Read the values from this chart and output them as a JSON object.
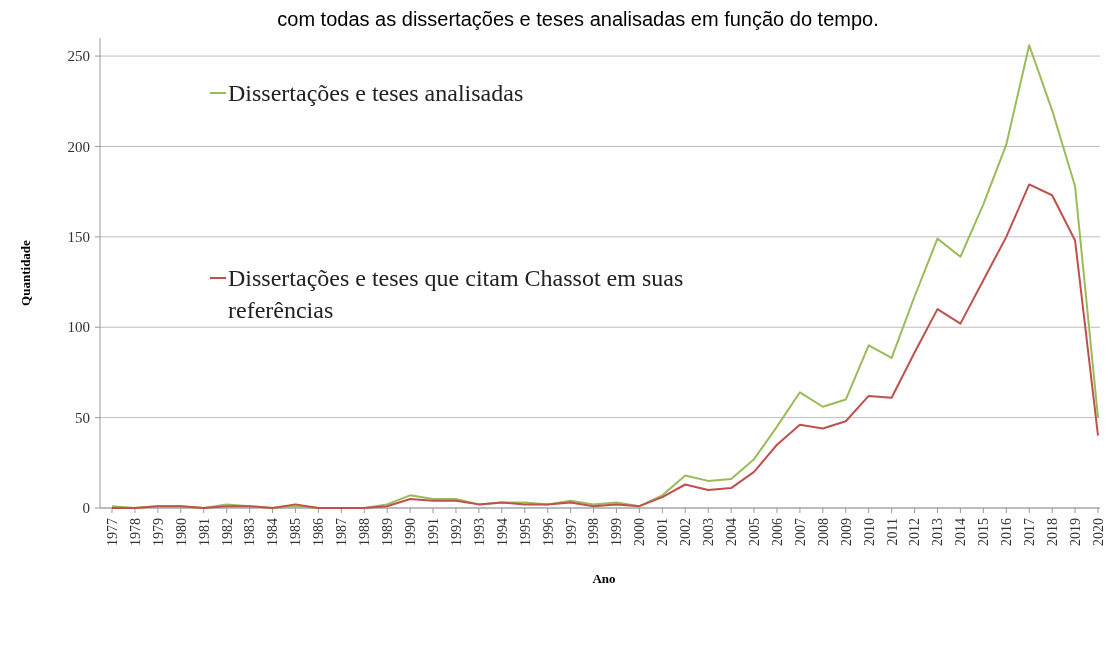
{
  "chart_data": {
    "type": "line",
    "title": "com todas as dissertações e teses analisadas em função do tempo.",
    "xlabel": "Ano",
    "ylabel": "Quantidade",
    "categories": [
      "1977",
      "1978",
      "1979",
      "1980",
      "1981",
      "1982",
      "1983",
      "1984",
      "1985",
      "1986",
      "1987",
      "1988",
      "1989",
      "1990",
      "1991",
      "1992",
      "1993",
      "1994",
      "1995",
      "1996",
      "1997",
      "1998",
      "1999",
      "2000",
      "2001",
      "2002",
      "2003",
      "2004",
      "2005",
      "2006",
      "2007",
      "2008",
      "2009",
      "2010",
      "2011",
      "2012",
      "2013",
      "2014",
      "2015",
      "2016",
      "2017",
      "2018",
      "2019",
      "2020"
    ],
    "series": [
      {
        "name": "Dissertações e teses analisadas",
        "color": "#9bbb59",
        "values": [
          1,
          0,
          1,
          1,
          0,
          2,
          1,
          0,
          1,
          0,
          0,
          0,
          2,
          7,
          5,
          5,
          2,
          3,
          3,
          2,
          4,
          2,
          3,
          1,
          7,
          18,
          15,
          16,
          27,
          45,
          64,
          56,
          60,
          90,
          83,
          117,
          149,
          139,
          168,
          201,
          256,
          220,
          178,
          50
        ]
      },
      {
        "name": "Dissertações e teses que citam Chassot em suas referências",
        "color": "#c0504d",
        "values": [
          0,
          0,
          1,
          1,
          0,
          1,
          1,
          0,
          2,
          0,
          0,
          0,
          1,
          5,
          4,
          4,
          2,
          3,
          2,
          2,
          3,
          1,
          2,
          1,
          6,
          13,
          10,
          11,
          20,
          35,
          46,
          44,
          48,
          62,
          61,
          86,
          110,
          102,
          126,
          150,
          179,
          173,
          148,
          40
        ]
      }
    ],
    "ylim": [
      0,
      260
    ],
    "yticks": [
      0,
      50,
      100,
      150,
      200,
      250
    ],
    "grid": "y",
    "legend": "top left",
    "marker": "none",
    "line_style": "solid"
  }
}
